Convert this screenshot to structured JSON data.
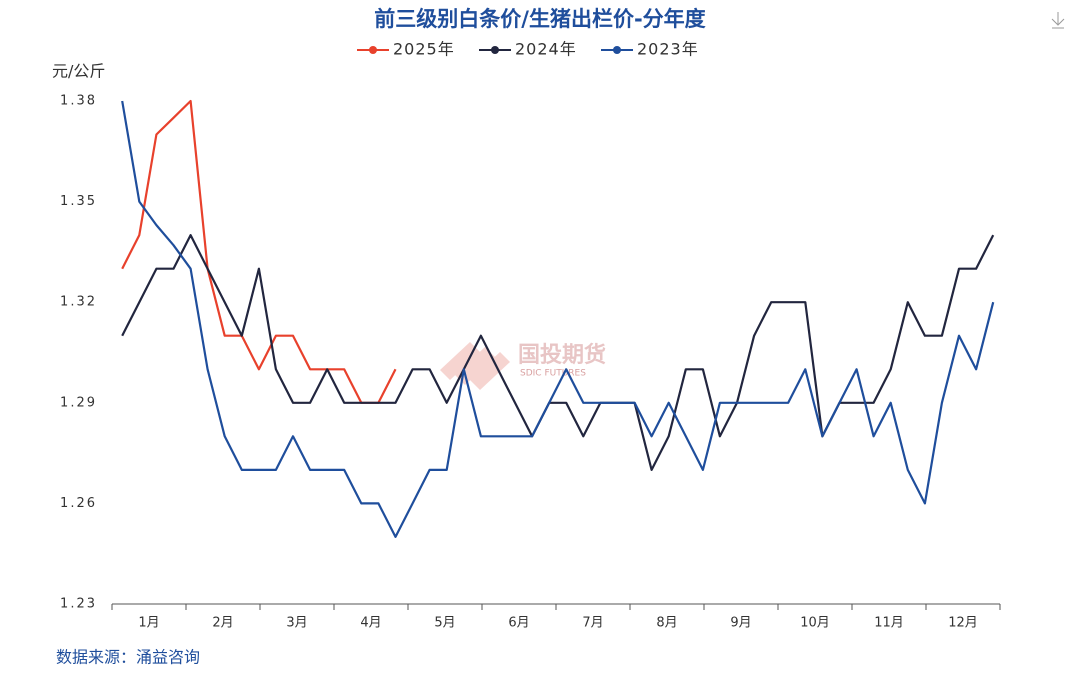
{
  "chart_data": {
    "type": "line",
    "title": "前三级别白条价/生猪出栏价-分年度",
    "y_label": "元/公斤",
    "source": "数据来源：涌益咨询",
    "watermark": "国投期货",
    "watermark_sub": "SDIC FUTURES",
    "month_labels": [
      "1月",
      "2月",
      "3月",
      "4月",
      "5月",
      "6月",
      "7月",
      "8月",
      "9月",
      "10月",
      "11月",
      "12月"
    ],
    "categories": [
      null,
      null,
      null,
      null,
      null,
      null,
      null,
      null,
      null,
      null,
      null,
      null,
      null,
      null,
      null,
      null,
      null,
      null,
      null,
      null,
      null,
      null,
      null,
      null,
      null,
      null,
      null,
      null,
      null,
      null,
      null,
      null,
      null,
      null,
      null,
      null,
      null,
      null,
      null,
      null,
      null,
      null,
      null,
      null,
      null,
      null,
      null,
      null,
      null,
      null,
      null,
      null
    ],
    "ylim": [
      1.23,
      1.38
    ],
    "yticks": [
      1.23,
      1.26,
      1.29,
      1.32,
      1.35,
      1.38
    ],
    "series": [
      {
        "name": "2025年",
        "color": "#e8412c",
        "values": [
          1.33,
          1.34,
          1.37,
          1.375,
          1.38,
          1.33,
          1.31,
          1.31,
          1.3,
          1.31,
          1.31,
          1.3,
          1.3,
          1.3,
          1.29,
          1.29,
          1.3,
          null,
          null,
          null,
          null,
          null,
          null,
          null,
          null,
          null,
          null,
          null,
          null,
          null,
          null,
          null,
          null,
          null,
          null,
          null,
          null,
          null,
          null,
          null,
          null,
          null,
          null,
          null,
          null,
          null,
          null,
          null,
          null,
          null,
          null,
          null
        ]
      },
      {
        "name": "2024年",
        "color": "#22263f",
        "values": [
          1.31,
          1.32,
          1.33,
          1.33,
          1.34,
          1.33,
          1.32,
          1.31,
          1.33,
          1.3,
          1.29,
          1.29,
          1.3,
          1.29,
          1.29,
          1.29,
          1.29,
          1.3,
          1.3,
          1.29,
          1.3,
          1.31,
          1.3,
          1.29,
          1.28,
          1.29,
          1.29,
          1.28,
          1.29,
          1.29,
          1.29,
          1.27,
          1.28,
          1.3,
          1.3,
          1.28,
          1.29,
          1.31,
          1.32,
          1.32,
          1.32,
          1.28,
          1.29,
          1.29,
          1.29,
          1.3,
          1.32,
          1.31,
          1.31,
          1.33,
          1.33,
          1.34
        ]
      },
      {
        "name": "2023年",
        "color": "#1f4e9c",
        "values": [
          1.38,
          1.35,
          1.343,
          1.337,
          1.33,
          1.3,
          1.28,
          1.27,
          1.27,
          1.27,
          1.28,
          1.27,
          1.27,
          1.27,
          1.26,
          1.26,
          1.25,
          1.26,
          1.27,
          1.27,
          1.3,
          1.28,
          1.28,
          1.28,
          1.28,
          1.29,
          1.3,
          1.29,
          1.29,
          1.29,
          1.29,
          1.28,
          1.29,
          1.28,
          1.27,
          1.29,
          1.29,
          1.29,
          1.29,
          1.29,
          1.3,
          1.28,
          1.29,
          1.3,
          1.28,
          1.29,
          1.27,
          1.26,
          1.29,
          1.31,
          1.3,
          1.32
        ]
      }
    ]
  }
}
